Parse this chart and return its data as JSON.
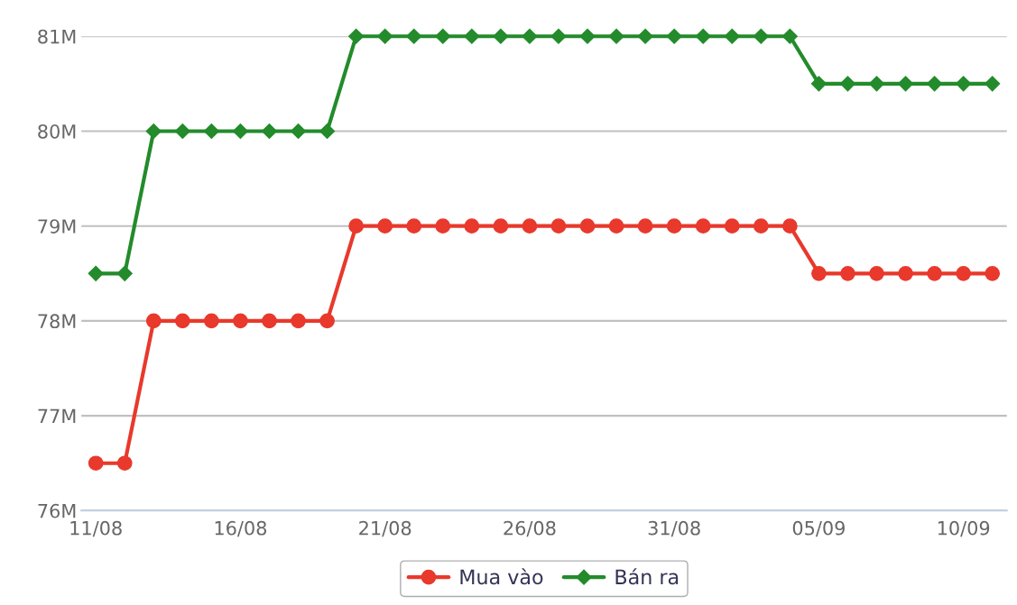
{
  "chart_data": {
    "type": "line",
    "categories": [
      "11/08",
      null,
      null,
      null,
      null,
      "16/08",
      null,
      null,
      null,
      null,
      "21/08",
      null,
      null,
      null,
      null,
      "26/08",
      null,
      null,
      null,
      null,
      "31/08",
      null,
      null,
      null,
      null,
      "05/09",
      null,
      null,
      null,
      null,
      "10/09",
      null
    ],
    "series": [
      {
        "name": "Mua vào",
        "color": "#e8392c",
        "marker": "circle",
        "values": [
          76.5,
          76.5,
          78,
          78,
          78,
          78,
          78,
          78,
          78,
          79,
          79,
          79,
          79,
          79,
          79,
          79,
          79,
          79,
          79,
          79,
          79,
          79,
          79,
          79,
          79,
          78.5,
          78.5,
          78.5,
          78.5,
          78.5,
          78.5,
          78.5
        ]
      },
      {
        "name": "Bán ra",
        "color": "#238b2b",
        "marker": "diamond",
        "values": [
          78.5,
          78.5,
          80,
          80,
          80,
          80,
          80,
          80,
          80,
          81,
          81,
          81,
          81,
          81,
          81,
          81,
          81,
          81,
          81,
          81,
          81,
          81,
          81,
          81,
          81,
          80.5,
          80.5,
          80.5,
          80.5,
          80.5,
          80.5,
          80.5
        ]
      }
    ],
    "ylim": [
      76,
      81
    ],
    "yticks": [
      {
        "value": 76,
        "label": "76M"
      },
      {
        "value": 77,
        "label": "77M"
      },
      {
        "value": 78,
        "label": "78M"
      },
      {
        "value": 79,
        "label": "79M"
      },
      {
        "value": 80,
        "label": "80M"
      },
      {
        "value": 81,
        "label": "81M"
      }
    ],
    "grid": "y",
    "legend": "bottom",
    "line_style": "solid"
  }
}
